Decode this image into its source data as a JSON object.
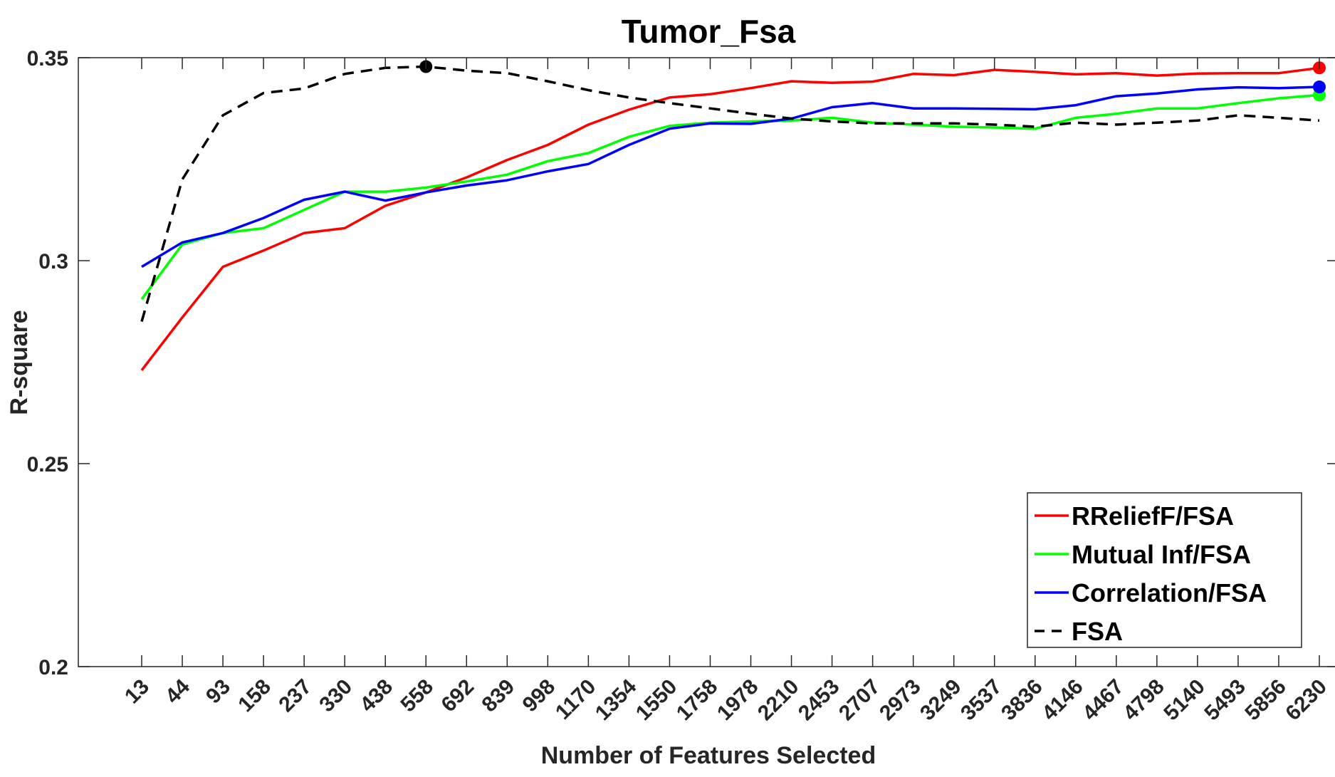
{
  "chart_data": {
    "type": "line",
    "title": "Tumor_Fsa",
    "xlabel": "Number of Features Selected",
    "ylabel": "R-square",
    "categories": [
      "13",
      "44",
      "93",
      "158",
      "237",
      "330",
      "438",
      "558",
      "692",
      "839",
      "998",
      "1170",
      "1354",
      "1550",
      "1758",
      "1978",
      "2210",
      "2453",
      "2707",
      "2973",
      "3249",
      "3537",
      "3836",
      "4146",
      "4467",
      "4798",
      "5140",
      "5493",
      "5856",
      "6230"
    ],
    "yticks": [
      "0.2",
      "0.25",
      "0.3",
      "0.35"
    ],
    "ytick_values": [
      0.2,
      0.25,
      0.3,
      0.35
    ],
    "ylim": [
      0.2,
      0.35
    ],
    "grid": false,
    "legend_position": "bottom-right",
    "series": [
      {
        "name": "RReliefF/FSA",
        "color": "#ff0000",
        "dash": "solid",
        "values": [
          0.273,
          0.286,
          0.2985,
          0.3025,
          0.3068,
          0.308,
          0.3135,
          0.3168,
          0.3205,
          0.3248,
          0.3285,
          0.3335,
          0.3372,
          0.3402,
          0.341,
          0.3425,
          0.3442,
          0.3438,
          0.3441,
          0.346,
          0.3457,
          0.347,
          0.3465,
          0.3459,
          0.3462,
          0.3456,
          0.3461,
          0.3462,
          0.3462,
          0.3475
        ],
        "marker_index": 29
      },
      {
        "name": "Mutual Inf/FSA",
        "color": "#00ff00",
        "dash": "solid",
        "values": [
          0.2905,
          0.304,
          0.3068,
          0.308,
          0.3125,
          0.317,
          0.317,
          0.318,
          0.3195,
          0.3212,
          0.3245,
          0.3265,
          0.3305,
          0.3332,
          0.334,
          0.3343,
          0.3345,
          0.3352,
          0.334,
          0.3335,
          0.333,
          0.3328,
          0.3325,
          0.3352,
          0.3362,
          0.3375,
          0.3375,
          0.3388,
          0.34,
          0.3408
        ],
        "marker_index": 29
      },
      {
        "name": "Correlation/FSA",
        "color": "#0000ff",
        "dash": "solid",
        "values": [
          0.2985,
          0.3045,
          0.3068,
          0.3105,
          0.315,
          0.317,
          0.3148,
          0.3168,
          0.3185,
          0.3198,
          0.322,
          0.3238,
          0.3285,
          0.3325,
          0.3338,
          0.3337,
          0.335,
          0.3378,
          0.3388,
          0.3375,
          0.3375,
          0.3374,
          0.3373,
          0.3383,
          0.3405,
          0.3412,
          0.3422,
          0.3427,
          0.3425,
          0.3428
        ],
        "marker_index": 29
      },
      {
        "name": "FSA",
        "color": "#000000",
        "dash": "dashed",
        "values": [
          0.285,
          0.32,
          0.3358,
          0.3413,
          0.3424,
          0.346,
          0.3475,
          0.3478,
          0.3468,
          0.3462,
          0.3442,
          0.342,
          0.3402,
          0.3388,
          0.3375,
          0.3362,
          0.335,
          0.3343,
          0.3338,
          0.3338,
          0.3338,
          0.3335,
          0.333,
          0.334,
          0.3335,
          0.334,
          0.3345,
          0.3358,
          0.3352,
          0.3345
        ],
        "marker_index": 7
      }
    ]
  }
}
